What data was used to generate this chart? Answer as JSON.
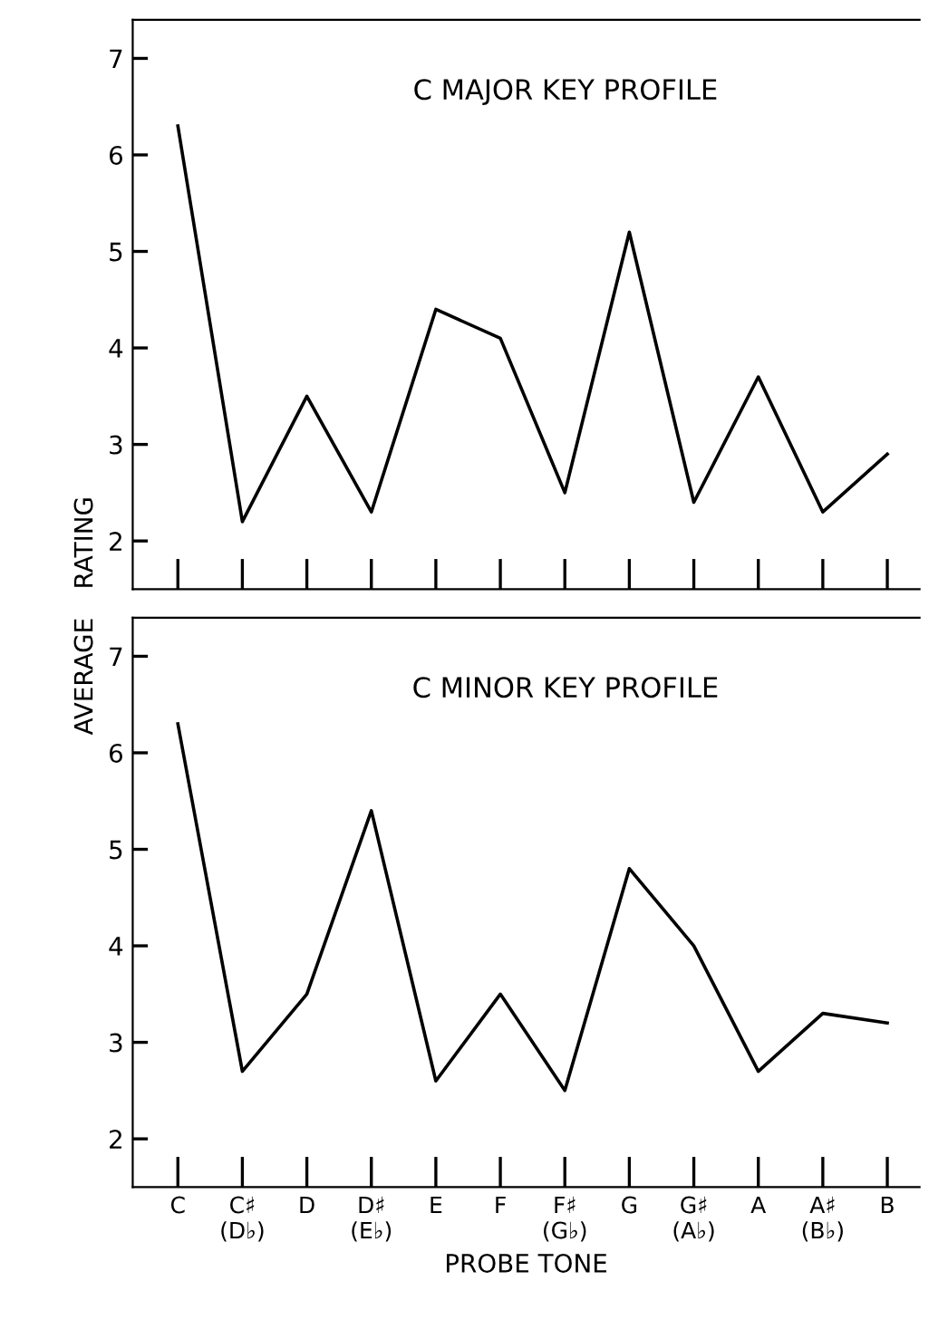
{
  "chart_data": [
    {
      "type": "line",
      "title": "C MAJOR KEY PROFILE",
      "ylabel": "RATING",
      "categories": [
        null,
        null,
        null,
        null,
        null,
        null,
        null,
        null,
        null,
        null,
        null,
        null
      ],
      "series": [
        {
          "color": "#000000",
          "values": [
            6.3,
            2.2,
            3.5,
            2.3,
            4.4,
            4.1,
            2.5,
            5.2,
            2.4,
            3.7,
            2.3,
            2.9
          ]
        }
      ],
      "ylim": [
        1.5,
        7.4
      ],
      "yticks": [
        2,
        3,
        4,
        5,
        6,
        7
      ],
      "tick_labels": "y",
      "grid": false,
      "legend": false,
      "marker": "none",
      "line_style": "solid"
    },
    {
      "type": "line",
      "title": "C MINOR KEY PROFILE",
      "ylabel": "AVERAGE",
      "xlabel": "PROBE TONE",
      "categories": [
        "C",
        "C♯\n(D♭)",
        "D",
        "D♯\n(E♭)",
        "E",
        "F",
        "F♯\n(G♭)",
        "G",
        "G♯\n(A♭)",
        "A",
        "A♯\n(B♭)",
        "B"
      ],
      "series": [
        {
          "color": "#000000",
          "values": [
            6.3,
            2.7,
            3.5,
            5.4,
            2.6,
            3.5,
            2.5,
            4.8,
            4.0,
            2.7,
            3.3,
            3.2
          ]
        }
      ],
      "ylim": [
        1.5,
        7.4
      ],
      "yticks": [
        2,
        3,
        4,
        5,
        6,
        7
      ],
      "grid": false,
      "legend": false,
      "marker": "none",
      "line_style": "solid"
    }
  ]
}
